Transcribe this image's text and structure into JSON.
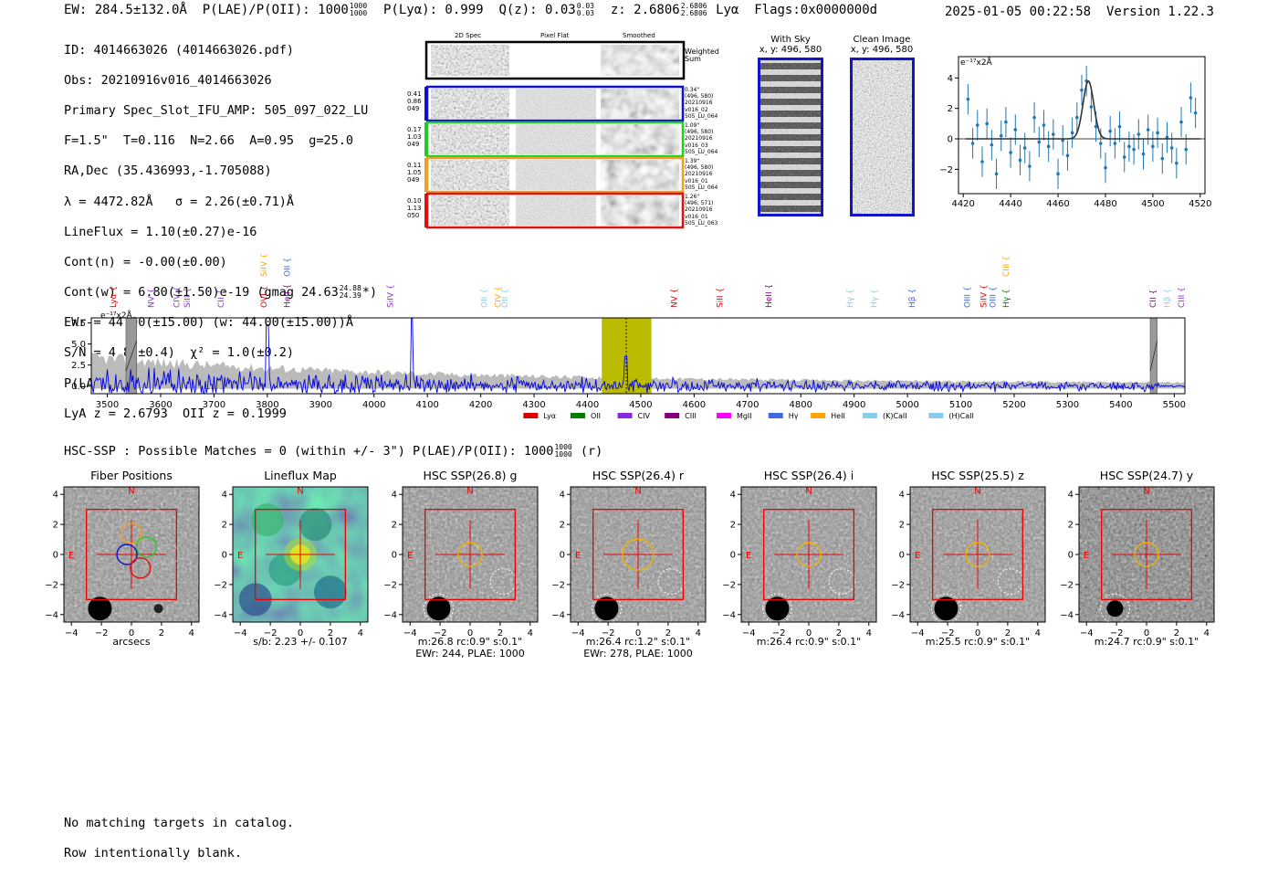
{
  "header": {
    "ew": "EW: 284.5±132.0Å",
    "plae_label": "P(LAE)/P(OII): 1000",
    "plae_hi": "1000",
    "plae_lo": "1000",
    "plya": "P(Lyα): 0.999",
    "qz_label": "Q(z): 0.03",
    "qz_hi": "0.03",
    "qz_lo": "0.03",
    "z_label": "z: 2.6806",
    "z_hi": "2.6806",
    "z_lo": "2.6806",
    "z_line": "Lyα",
    "flags": "Flags:0x0000000d",
    "date": "2025-01-05 00:22:58",
    "version": "Version 1.22.3"
  },
  "info": {
    "id": "ID: 4014663026 (4014663026.pdf)",
    "obs": "Obs: 20210916v016_4014663026",
    "spec": "Primary Spec_Slot_IFU_AMP: 505_097_022_LU",
    "fit": "F=1.5\"  T=0.116  N=2.66  A=0.95  g=25.0",
    "radec": "RA,Dec (35.436993,-1.705088)",
    "lambda": "λ = 4472.82Å   σ = 2.26(±0.71)Å",
    "lineflux": "LineFlux = 1.10(±0.27)e-16",
    "contn": "Cont(n) = -0.00(±0.00)",
    "contw_a": "Cont(w) = 6.80(±1.50)e-19 (gmag 24.63",
    "gmag_hi": "24.88",
    "gmag_lo": "24.39",
    "contw_b": "*)",
    "ewr": "EWr = 44.00(±15.00) (w: 44.00(±15.00))Å",
    "sn": "S/N = 4.8(±0.4)  χ² = 1.0(±0.2)",
    "plae_a": "P(LAE)/P(OII): 1000",
    "plae_hi": "1000",
    "plae_lo": "1000",
    "lya": "LyA z = 2.6793  OII z = 0.1999"
  },
  "cutouts": {
    "col_2d": "2D Spec",
    "col_flat": "Pixel Flat",
    "col_smooth": "Smoothed",
    "weighted": "Weighted\nSum",
    "rows": [
      {
        "left": "0.41\n0.86\n049",
        "right": "0.34\"\n(496, 580)\n20210916\nv016_02\n505_LU_064",
        "color": "#1010c8"
      },
      {
        "left": "0.17\n1.03\n049",
        "right": "1.09\"\n(496, 580)\n20210916\nv016_03\n505_LU_064",
        "color": "#22cc22"
      },
      {
        "left": "0.11\n1.05\n049",
        "right": "1.39\"\n(496, 580)\n20210916\nv016_01\n505_LU_064",
        "color": "#f0a020"
      },
      {
        "left": "0.10\n1.13\n050",
        "right": "1.26\"\n(496, 571)\n20210916\nv016_01\n505_LU_063",
        "color": "#e01010"
      }
    ]
  },
  "sky": {
    "title": "With Sky",
    "coords": "x, y: 496, 580"
  },
  "clean": {
    "title": "Clean Image",
    "coords": "x, y: 496, 580"
  },
  "zoom_chart": {
    "type": "scatter",
    "unit": "e⁻¹⁷x2Å",
    "xlim": [
      4418,
      4522
    ],
    "ylim": [
      -3.6,
      5.4
    ],
    "xticks": [
      4420,
      4440,
      4460,
      4480,
      4500,
      4520
    ],
    "yticks": [
      -2,
      0,
      2,
      4
    ],
    "x": [
      4422,
      4424,
      4426,
      4428,
      4430,
      4432,
      4434,
      4436,
      4438,
      4440,
      4442,
      4444,
      4446,
      4448,
      4450,
      4452,
      4454,
      4456,
      4458,
      4460,
      4462,
      4464,
      4466,
      4468,
      4470,
      4472,
      4474,
      4476,
      4478,
      4480,
      4482,
      4484,
      4486,
      4488,
      4490,
      4492,
      4494,
      4496,
      4498,
      4500,
      4502,
      4504,
      4506,
      4508,
      4510,
      4512,
      4514,
      4516,
      4518
    ],
    "y": [
      2.6,
      -0.3,
      0.9,
      -1.5,
      1.0,
      -0.4,
      -2.3,
      0.2,
      1.1,
      -0.9,
      0.6,
      -1.4,
      -0.6,
      -1.8,
      1.4,
      -0.2,
      0.9,
      -0.5,
      0.3,
      -2.3,
      -0.1,
      -1.1,
      0.4,
      1.4,
      3.2,
      3.8,
      2.1,
      0.8,
      -0.3,
      -1.9,
      0.5,
      -0.3,
      0.8,
      -1.2,
      -0.5,
      -0.7,
      0.3,
      -1.0,
      0.6,
      -0.5,
      0.4,
      -1.3,
      0.1,
      -0.6,
      -1.6,
      1.1,
      -0.7,
      2.7,
      1.7
    ],
    "err": 1.0,
    "fit_center": 4472.8,
    "fit_sigma": 2.26,
    "fit_amp": 3.8
  },
  "chart_data": {
    "type": "line",
    "title": "",
    "unit": "e⁻¹⁷x2Å",
    "xlim": [
      3470,
      5520
    ],
    "ylim": [
      -0.9,
      8.1
    ],
    "xticks": [
      3500,
      3600,
      3700,
      3800,
      3900,
      4000,
      4100,
      4200,
      4300,
      4400,
      4500,
      4600,
      4700,
      4800,
      4900,
      5000,
      5100,
      5200,
      5300,
      5400,
      5500
    ],
    "yticks": [
      0.0,
      2.5,
      5.0,
      7.5
    ],
    "ytick_labels": [
      "0.0",
      "2.5",
      "5.0",
      "7.5"
    ],
    "highlight_window": [
      4427,
      4520
    ],
    "emission_marker": 4472.8,
    "grey_bands": [
      [
        3535,
        3555
      ],
      [
        5455,
        5468
      ]
    ],
    "lines": [
      {
        "name": "Lyα",
        "x": 3511,
        "color": "#e00000",
        "row": 1
      },
      {
        "name": "NV",
        "x": 3582,
        "color": "#8833cc",
        "row": 1
      },
      {
        "name": "CIV",
        "x": 3630,
        "color": "#8833cc",
        "row": 1
      },
      {
        "name": "SiII",
        "x": 3650,
        "color": "#8833cc",
        "row": 1
      },
      {
        "name": "CII",
        "x": 3713,
        "color": "#8833cc",
        "row": 1
      },
      {
        "name": "SiIV",
        "x": 3793,
        "color": "#ffa500",
        "row": 0
      },
      {
        "name": "OVI",
        "x": 3793,
        "color": "#e00000",
        "row": 1
      },
      {
        "name": "OII",
        "x": 3837,
        "color": "#4169e1",
        "row": 0
      },
      {
        "name": "HeII",
        "x": 3837,
        "color": "#800080",
        "row": 1
      },
      {
        "name": "SiIV",
        "x": 4030,
        "color": "#8833cc",
        "row": 1
      },
      {
        "name": "OII",
        "x": 4207,
        "color": "#87ceeb",
        "row": 1
      },
      {
        "name": "CIV",
        "x": 4232,
        "color": "#ffa500",
        "row": 1
      },
      {
        "name": "OII",
        "x": 4245,
        "color": "#87ceeb",
        "row": 1
      },
      {
        "name": "NV",
        "x": 4563,
        "color": "#e00000",
        "row": 1
      },
      {
        "name": "SiII",
        "x": 4648,
        "color": "#e00000",
        "row": 1
      },
      {
        "name": "HeII",
        "x": 4740,
        "color": "#800080",
        "row": 1
      },
      {
        "name": "Hγ",
        "x": 4892,
        "color": "#87ceeb",
        "row": 1
      },
      {
        "name": "Hγ",
        "x": 4937,
        "color": "#87ceeb",
        "row": 1
      },
      {
        "name": "Hβ",
        "x": 5008,
        "color": "#4169e1",
        "row": 1
      },
      {
        "name": "OIII",
        "x": 5112,
        "color": "#4169e1",
        "row": 1
      },
      {
        "name": "SiIV",
        "x": 5143,
        "color": "#e00000",
        "row": 1
      },
      {
        "name": "OIII",
        "x": 5160,
        "color": "#4169e1",
        "row": 1
      },
      {
        "name": "CIII",
        "x": 5185,
        "color": "#ffa500",
        "row": 0
      },
      {
        "name": "Hγ",
        "x": 5185,
        "color": "#008000",
        "row": 1
      },
      {
        "name": "CII",
        "x": 5460,
        "color": "#800080",
        "row": 1
      },
      {
        "name": "Hβ",
        "x": 5487,
        "color": "#87ceeb",
        "row": 1
      },
      {
        "name": "CIII",
        "x": 5513,
        "color": "#8833cc",
        "row": 1
      }
    ],
    "legend": [
      {
        "name": "Lyα",
        "color": "#e00000"
      },
      {
        "name": "OII",
        "color": "#008000"
      },
      {
        "name": "CIV",
        "color": "#8a2be2"
      },
      {
        "name": "CIII",
        "color": "#800080"
      },
      {
        "name": "MgII",
        "color": "#ff00ff"
      },
      {
        "name": "Hγ",
        "color": "#4169e1"
      },
      {
        "name": "HeII",
        "color": "#ffa500"
      },
      {
        "name": "(K)CaII",
        "color": "#87ceeb"
      },
      {
        "name": "(H)CaII",
        "color": "#87ceeb"
      }
    ],
    "series": [
      {
        "name": "spectrum",
        "color": "#0000dd",
        "note": "noisy flux, rms ~1.3 at blue end declining to ~0.3 at red end; peaks 7.3@3800, 8.0@4071, 3.5@4472"
      },
      {
        "name": "error",
        "color": "#bbbbbb",
        "note": "grey uncertainty envelope ~3.2 at 3500 declining to ~0.3 at 5500"
      }
    ]
  },
  "hsc": {
    "summary_a": "HSC-SSP : Possible Matches = 0 (within +/- 3\")  P(LAE)/P(OII): 1000",
    "summary_hi": "1000",
    "summary_lo": "1000",
    "summary_b": "(r)"
  },
  "panels": [
    {
      "title": "Fiber Positions",
      "cap1": "arcsecs",
      "cap2": ""
    },
    {
      "title": "Lineflux Map",
      "cap1": "s/b: 2.23 +/- 0.107",
      "cap2": ""
    },
    {
      "title": "HSC SSP(26.8) g",
      "cap1": "m:26.8 rc:0.9\"  s:0.1\"",
      "cap2": "EWr: 244, PLAE: 1000"
    },
    {
      "title": "HSC SSP(26.4) r",
      "cap1": "m:26.4 rc:1.2\"  s:0.1\"",
      "cap2": "EWr: 278, PLAE: 1000"
    },
    {
      "title": "HSC SSP(26.4) i",
      "cap1": "m:26.4 rc:0.9\"  s:0.1\"",
      "cap2": ""
    },
    {
      "title": "HSC SSP(25.5) z",
      "cap1": "m:25.5 rc:0.9\"  s:0.1\"",
      "cap2": ""
    },
    {
      "title": "HSC SSP(24.7) y",
      "cap1": "m:24.7 rc:0.9\"  s:0.1\"",
      "cap2": ""
    }
  ],
  "panel_axis": {
    "ticks": [
      -4,
      -2,
      0,
      2,
      4
    ],
    "tick_labels": [
      "−4",
      "−2",
      "0",
      "2",
      "4"
    ],
    "north": "N",
    "east": "E"
  },
  "footer": {
    "line1": "No matching targets in catalog.",
    "line2": "Row intentionally blank."
  }
}
